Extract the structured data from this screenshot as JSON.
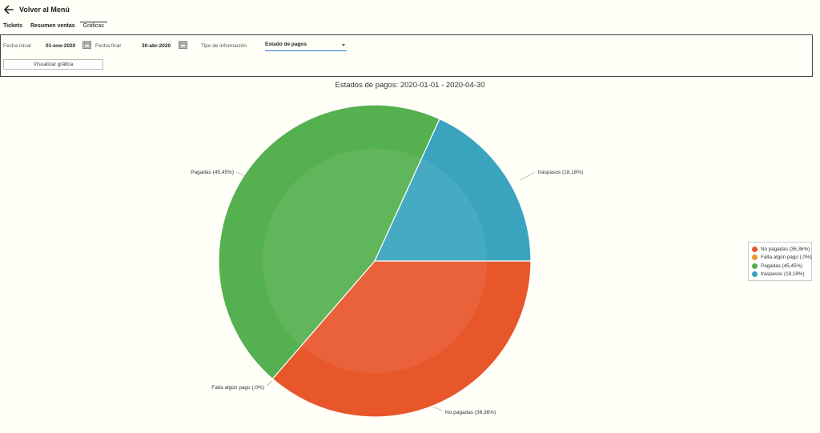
{
  "header": {
    "back_label": "Volver al Menú"
  },
  "tabs": [
    {
      "label": "Tickets",
      "active": false
    },
    {
      "label": "Resumen ventas",
      "active": false
    },
    {
      "label": "Gráficas",
      "active": true
    }
  ],
  "filters": {
    "start_label": "Fecha inical",
    "start_value": "01-ene-2020",
    "end_label": "Fecha final",
    "end_value": "30-abr-2020",
    "type_label": "Tipo de información",
    "type_value": "Estado de pagos",
    "button_label": "Visualizar gráfica"
  },
  "chart_data": {
    "type": "pie",
    "title": "Estados de pagos: 2020-01-01 - 2020-04-30",
    "slices": [
      {
        "name": "No pagadas",
        "label": "No pagadas (36,36%)",
        "value": 36.36,
        "color": "#e8572a"
      },
      {
        "name": "Falta algún pago",
        "label": "Falta algún pago (,0%)",
        "value": 0,
        "color": "#f0952b"
      },
      {
        "name": "Pagadas",
        "label": "Pagadas (45,45%)",
        "value": 45.45,
        "color": "#55b04f"
      },
      {
        "name": "traspasos",
        "label": "traspasos (18,18%)",
        "value": 18.18,
        "color": "#3aa4bf"
      }
    ],
    "legend_position": "right"
  }
}
